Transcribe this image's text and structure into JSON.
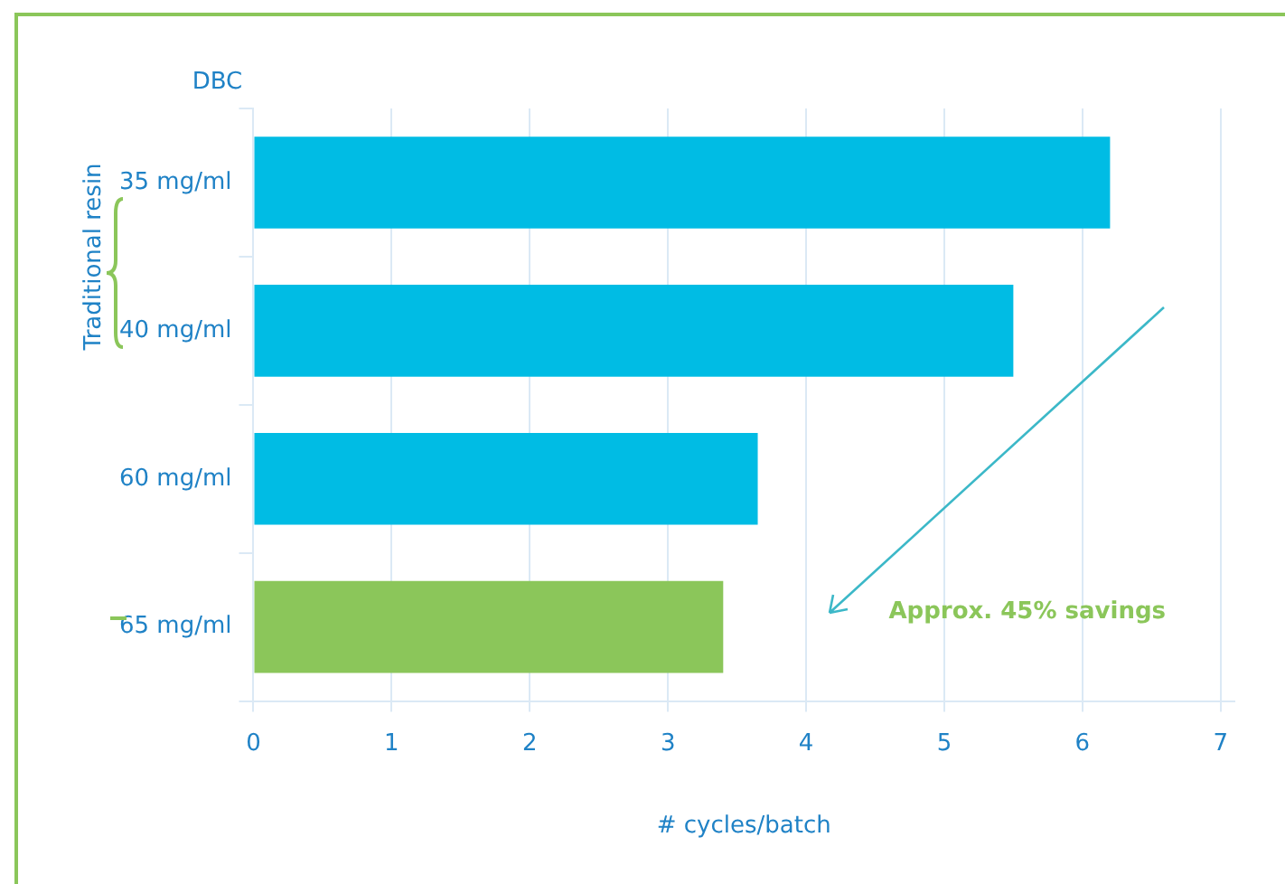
{
  "chart_data": {
    "type": "bar",
    "orientation": "horizontal",
    "ylabel": "DBC",
    "xlabel": "# cycles/batch",
    "categories": [
      "35 mg/ml",
      "40 mg/ml",
      "60 mg/ml",
      "65 mg/ml"
    ],
    "values": [
      6.2,
      5.5,
      3.65,
      3.4
    ],
    "colors": [
      "#00bce4",
      "#00bce4",
      "#00bce4",
      "#8bc65a"
    ],
    "xlim": [
      0,
      7.1
    ],
    "xticks": [
      0,
      1,
      2,
      3,
      4,
      5,
      6,
      7
    ],
    "grid": "x",
    "legend": false,
    "annotations": [
      "Traditional resin",
      "Approx. 45% savings"
    ]
  }
}
